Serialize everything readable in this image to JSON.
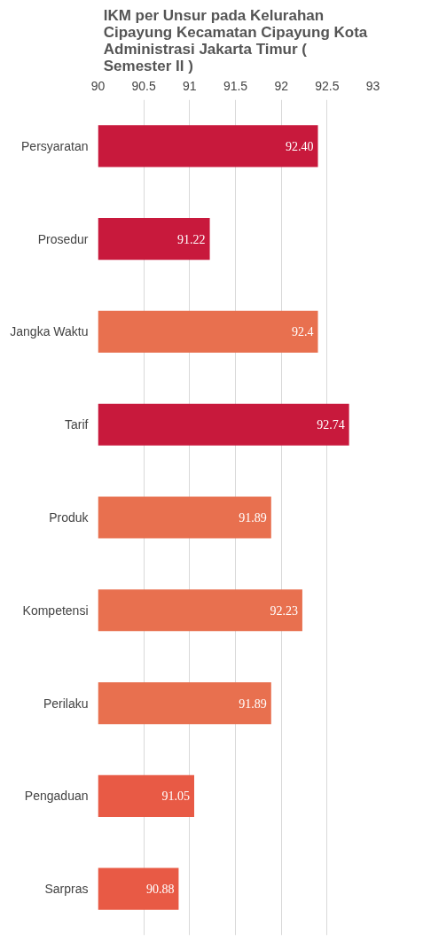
{
  "chart_data": {
    "type": "bar",
    "orientation": "horizontal",
    "title": "IKM per Unsur pada Kelurahan Cipayung Kecamatan Cipayung Kota Administrasi Jakarta Timur ( Semester II )",
    "categories": [
      "Persyaratan",
      "Prosedur",
      "Jangka Waktu",
      "Tarif",
      "Produk",
      "Kompetensi",
      "Perilaku",
      "Pengaduan",
      "Sarpras"
    ],
    "values": [
      92.4,
      91.22,
      92.4,
      92.74,
      91.89,
      92.23,
      91.89,
      91.05,
      90.88
    ],
    "value_labels": [
      "92.40",
      "91.22",
      "92.4",
      "92.74",
      "91.89",
      "92.23",
      "91.89",
      "91.05",
      "90.88"
    ],
    "colors": [
      "#c8193c",
      "#c8193c",
      "#e8704f",
      "#c8193c",
      "#e8704f",
      "#e8704f",
      "#e8704f",
      "#e85a45",
      "#e85a45"
    ],
    "xlim": [
      90,
      93
    ],
    "xticks": [
      90,
      90.5,
      91,
      91.5,
      92,
      92.5,
      93
    ],
    "grid": "x"
  }
}
